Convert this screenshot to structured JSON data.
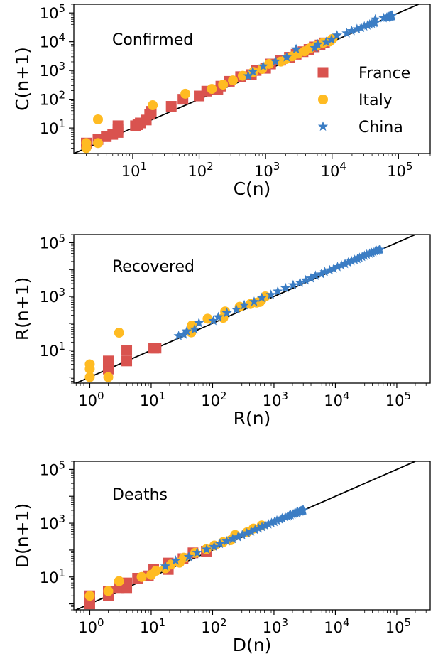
{
  "chart_data": [
    {
      "type": "scatter",
      "panel_label": "Confirmed",
      "xlabel": "C(n)",
      "ylabel": "C(n+1)",
      "scale": "log-log",
      "xlim": [
        1.3,
        300000
      ],
      "ylim": [
        1.3,
        200000
      ],
      "xticks": [
        10,
        100,
        1000,
        10000,
        100000
      ],
      "yticks": [
        10,
        100,
        1000,
        10000,
        100000
      ],
      "legend": "right",
      "fit_line": [
        [
          1.3,
          1.3
        ],
        [
          200000,
          200000
        ]
      ],
      "series": [
        {
          "name": "France",
          "marker": "square",
          "color": "#d9534f",
          "points": [
            [
              2,
              3
            ],
            [
              3,
              4
            ],
            [
              4,
              5
            ],
            [
              5,
              6
            ],
            [
              6,
              7
            ],
            [
              6,
              9
            ],
            [
              6,
              12
            ],
            [
              11,
              12
            ],
            [
              12,
              13
            ],
            [
              13,
              15
            ],
            [
              16,
              19
            ],
            [
              18,
              30
            ],
            [
              19,
              38
            ],
            [
              38,
              57
            ],
            [
              57,
              100
            ],
            [
              100,
              130
            ],
            [
              130,
              191
            ],
            [
              191,
              212
            ],
            [
              212,
              285
            ],
            [
              285,
              420
            ],
            [
              420,
              610
            ],
            [
              610,
              720
            ],
            [
              720,
              1000
            ],
            [
              1000,
              1190
            ],
            [
              1190,
              1680
            ],
            [
              1680,
              2280
            ],
            [
              2280,
              2880
            ],
            [
              2880,
              3660
            ],
            [
              3660,
              4500
            ],
            [
              4500,
              5400
            ],
            [
              5400,
              6600
            ],
            [
              6600,
              7700
            ],
            [
              7700,
              9100
            ]
          ]
        },
        {
          "name": "Italy",
          "marker": "circle",
          "color": "#ffbb22",
          "points": [
            [
              2,
              2
            ],
            [
              2,
              3
            ],
            [
              3,
              3
            ],
            [
              3,
              20
            ],
            [
              20,
              62
            ],
            [
              62,
              155
            ],
            [
              155,
              229
            ],
            [
              229,
              322
            ],
            [
              322,
              453
            ],
            [
              453,
              655
            ],
            [
              655,
              888
            ],
            [
              888,
              1128
            ],
            [
              1128,
              1694
            ],
            [
              1694,
              2036
            ],
            [
              2036,
              2502
            ],
            [
              2502,
              3089
            ],
            [
              3089,
              3858
            ],
            [
              3858,
              4636
            ],
            [
              4636,
              5883
            ],
            [
              5883,
              7375
            ],
            [
              7375,
              9172
            ],
            [
              9172,
              10149
            ],
            [
              10149,
              12462
            ]
          ]
        },
        {
          "name": "China",
          "marker": "star",
          "color": "#3b7dc4",
          "points": [
            [
              548,
              643
            ],
            [
              643,
              920
            ],
            [
              920,
              1406
            ],
            [
              1406,
              2075
            ],
            [
              2075,
              2877
            ],
            [
              2877,
              5509
            ],
            [
              5509,
              6087
            ],
            [
              6087,
              8141
            ],
            [
              8141,
              9802
            ],
            [
              9802,
              11891
            ],
            [
              11891,
              16630
            ],
            [
              16630,
              19716
            ],
            [
              19716,
              23707
            ],
            [
              23707,
              27440
            ],
            [
              27440,
              30587
            ],
            [
              30587,
              34110
            ],
            [
              34110,
              36814
            ],
            [
              36814,
              39829
            ],
            [
              39829,
              42354
            ],
            [
              42354,
              44386
            ],
            [
              44386,
              44759
            ],
            [
              44759,
              59895
            ],
            [
              59895,
              66358
            ],
            [
              66358,
              68413
            ],
            [
              68413,
              70513
            ],
            [
              70513,
              72434
            ],
            [
              72434,
              74211
            ],
            [
              74211,
              74619
            ],
            [
              74619,
              75077
            ],
            [
              75077,
              75550
            ],
            [
              75550,
              77001
            ],
            [
              77001,
              77022
            ],
            [
              77022,
              77241
            ],
            [
              77241,
              77754
            ],
            [
              77754,
              78166
            ],
            [
              78166,
              78600
            ],
            [
              78600,
              78928
            ],
            [
              78928,
              79356
            ],
            [
              79356,
              79932
            ],
            [
              79932,
              80136
            ],
            [
              80136,
              80261
            ]
          ]
        }
      ]
    },
    {
      "type": "scatter",
      "panel_label": "Recovered",
      "xlabel": "R(n)",
      "ylabel": "R(n+1)",
      "scale": "log-log",
      "xlim": [
        0.55,
        350000
      ],
      "ylim": [
        0.6,
        200000
      ],
      "xticks": [
        1,
        10,
        100,
        1000,
        10000,
        100000
      ],
      "yticks": [
        10,
        1000,
        100000
      ],
      "fit_line": [
        [
          0.55,
          0.55
        ],
        [
          200000,
          200000
        ]
      ],
      "series": [
        {
          "name": "France",
          "marker": "square",
          "color": "#d9534f",
          "points": [
            [
              2,
              2
            ],
            [
              2,
              3
            ],
            [
              2,
              4
            ],
            [
              4,
              4
            ],
            [
              4,
              10
            ],
            [
              11,
              12
            ],
            [
              12,
              12
            ]
          ]
        },
        {
          "name": "Italy",
          "marker": "circle",
          "color": "#ffbb22",
          "points": [
            [
              1,
              1
            ],
            [
              1,
              2
            ],
            [
              1,
              3
            ],
            [
              2,
              1
            ],
            [
              3,
              45
            ],
            [
              45,
              46
            ],
            [
              46,
              83
            ],
            [
              83,
              149
            ],
            [
              149,
              160
            ],
            [
              160,
              276
            ],
            [
              276,
              414
            ],
            [
              414,
              523
            ],
            [
              523,
              589
            ],
            [
              589,
              622
            ],
            [
              622,
              724
            ],
            [
              724,
              1004
            ]
          ]
        },
        {
          "name": "China",
          "marker": "star",
          "color": "#3b7dc4",
          "points": [
            [
              28,
              34
            ],
            [
              34,
              38
            ],
            [
              38,
              51
            ],
            [
              51,
              60
            ],
            [
              60,
              103
            ],
            [
              103,
              124
            ],
            [
              124,
              171
            ],
            [
              171,
              243
            ],
            [
              243,
              328
            ],
            [
              328,
              475
            ],
            [
              475,
              632
            ],
            [
              632,
              892
            ],
            [
              892,
              1152
            ],
            [
              1152,
              1540
            ],
            [
              1540,
              2050
            ],
            [
              2050,
              2649
            ],
            [
              2649,
              3281
            ],
            [
              3281,
              3996
            ],
            [
              3996,
              4740
            ],
            [
              4740,
              5911
            ],
            [
              5911,
              6723
            ],
            [
              6723,
              8096
            ],
            [
              8096,
              9419
            ],
            [
              9419,
              10844
            ],
            [
              10844,
              12552
            ],
            [
              12552,
              14376
            ],
            [
              14376,
              16155
            ],
            [
              16155,
              18264
            ],
            [
              18264,
              20659
            ],
            [
              20659,
              22888
            ],
            [
              22888,
              24734
            ],
            [
              24734,
              27323
            ],
            [
              27323,
              29745
            ],
            [
              29745,
              32495
            ],
            [
              32495,
              36117
            ],
            [
              36117,
              39002
            ],
            [
              39002,
              41625
            ],
            [
              41625,
              44462
            ],
            [
              44462,
              47204
            ],
            [
              47204,
              49856
            ],
            [
              49856,
              52045
            ],
            [
              52045,
              53726
            ],
            [
              53726,
              55404
            ]
          ]
        }
      ]
    },
    {
      "type": "scatter",
      "panel_label": "Deaths",
      "xlabel": "D(n)",
      "ylabel": "D(n+1)",
      "scale": "log-log",
      "xlim": [
        0.55,
        350000
      ],
      "ylim": [
        0.6,
        200000
      ],
      "xticks": [
        1,
        10,
        100,
        1000,
        10000,
        100000
      ],
      "yticks": [
        10,
        1000,
        100000
      ],
      "fit_line": [
        [
          0.55,
          0.55
        ],
        [
          200000,
          200000
        ]
      ],
      "series": [
        {
          "name": "France",
          "marker": "square",
          "color": "#d9534f",
          "points": [
            [
              1,
              1
            ],
            [
              1,
              2
            ],
            [
              2,
              2
            ],
            [
              2,
              3
            ],
            [
              3,
              4
            ],
            [
              4,
              4
            ],
            [
              4,
              6
            ],
            [
              6,
              9
            ],
            [
              9,
              11
            ],
            [
              11,
              19
            ],
            [
              19,
              19
            ],
            [
              19,
              33
            ],
            [
              33,
              48
            ],
            [
              48,
              79
            ],
            [
              79,
              91
            ]
          ]
        },
        {
          "name": "Italy",
          "marker": "circle",
          "color": "#ffbb22",
          "points": [
            [
              1,
              2
            ],
            [
              2,
              3
            ],
            [
              3,
              7
            ],
            [
              7,
              10
            ],
            [
              10,
              12
            ],
            [
              12,
              17
            ],
            [
              17,
              21
            ],
            [
              21,
              29
            ],
            [
              29,
              34
            ],
            [
              34,
              52
            ],
            [
              52,
              79
            ],
            [
              79,
              107
            ],
            [
              107,
              148
            ],
            [
              148,
              197
            ],
            [
              197,
              233
            ],
            [
              233,
              366
            ],
            [
              366,
              463
            ],
            [
              463,
              631
            ],
            [
              631,
              827
            ]
          ]
        },
        {
          "name": "China",
          "marker": "star",
          "color": "#3b7dc4",
          "points": [
            [
              17,
              25
            ],
            [
              25,
              41
            ],
            [
              41,
              56
            ],
            [
              56,
              80
            ],
            [
              80,
              106
            ],
            [
              106,
              132
            ],
            [
              132,
              170
            ],
            [
              170,
              213
            ],
            [
              213,
              259
            ],
            [
              259,
              304
            ],
            [
              304,
              362
            ],
            [
              362,
              426
            ],
            [
              426,
              492
            ],
            [
              492,
              565
            ],
            [
              565,
              638
            ],
            [
              638,
              724
            ],
            [
              724,
              813
            ],
            [
              813,
              910
            ],
            [
              910,
              1018
            ],
            [
              1018,
              1115
            ],
            [
              1115,
              1261
            ],
            [
              1261,
              1355
            ],
            [
              1355,
              1524
            ],
            [
              1524,
              1666
            ],
            [
              1666,
              1770
            ],
            [
              1770,
              1868
            ],
            [
              1868,
              2004
            ],
            [
              2004,
              2118
            ],
            [
              2118,
              2236
            ],
            [
              2236,
              2345
            ],
            [
              2345,
              2442
            ],
            [
              2442,
              2592
            ],
            [
              2592,
              2663
            ],
            [
              2663,
              2715
            ],
            [
              2715,
              2744
            ],
            [
              2744,
              2788
            ],
            [
              2788,
              2835
            ],
            [
              2835,
              2870
            ],
            [
              2870,
              2912
            ],
            [
              2912,
              2943
            ],
            [
              2943,
              2981
            ],
            [
              2981,
              3012
            ],
            [
              3012,
              3042
            ]
          ]
        }
      ]
    }
  ]
}
